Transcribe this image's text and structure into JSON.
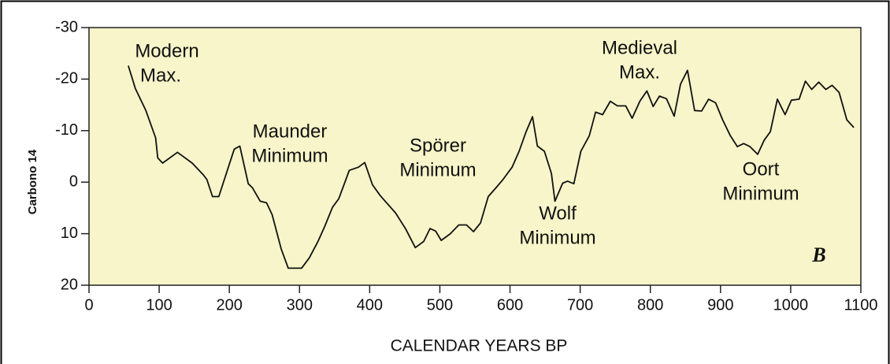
{
  "chart_data": {
    "type": "line",
    "ylabel": "Carbono 14",
    "xlabel": "CALENDAR YEARS BP",
    "panel_label": "B",
    "annotations": [
      [
        "Modern",
        "Max."
      ],
      [
        "Maunder",
        "Minimum"
      ],
      [
        "Spörer",
        "Minimum"
      ],
      [
        "Wolf",
        "Minimum"
      ],
      [
        "Medieval",
        "Max."
      ],
      [
        "Oort",
        "Minimum"
      ]
    ],
    "color": "#111111",
    "background": "#f7f5c9",
    "inverted_y": true,
    "xlim": [
      0,
      1100
    ],
    "xticks": [
      0,
      100,
      200,
      300,
      400,
      500,
      600,
      700,
      800,
      900,
      1000,
      1100
    ],
    "ylim": [
      -30,
      20
    ],
    "yticks": [
      -30,
      -20,
      -10,
      0,
      10,
      20
    ],
    "x": [
      56,
      66,
      81,
      95,
      98,
      105,
      126,
      147,
      163,
      168,
      176,
      185,
      207,
      215,
      227,
      233,
      244,
      253,
      261,
      274,
      284,
      303,
      314,
      326,
      336,
      347,
      356,
      371,
      384,
      393,
      404,
      415,
      437,
      451,
      465,
      477,
      486,
      494,
      502,
      515,
      527,
      538,
      548,
      558,
      569,
      580,
      590,
      603,
      613,
      623,
      632,
      639,
      649,
      659,
      664,
      675,
      682,
      691,
      701,
      713,
      722,
      732,
      743,
      753,
      765,
      774,
      785,
      795,
      804,
      813,
      823,
      834,
      843,
      853,
      863,
      873,
      883,
      893,
      903,
      914,
      924,
      933,
      942,
      953,
      962,
      971,
      981,
      992,
      1001,
      1012,
      1021,
      1030,
      1040,
      1050,
      1059,
      1069,
      1080,
      1090
    ],
    "values": [
      -22.6,
      -18.2,
      -13.9,
      -8.6,
      -4.7,
      -3.7,
      -5.8,
      -3.7,
      -1.4,
      -0.5,
      2.8,
      2.8,
      -6.4,
      -7.0,
      0.3,
      1.1,
      3.7,
      4.0,
      6.3,
      13,
      16.7,
      16.7,
      14.7,
      11.6,
      8.6,
      4.9,
      3.2,
      -2.3,
      -2.9,
      -3.8,
      0.5,
      2.6,
      6.0,
      9.0,
      12.7,
      11.5,
      9.0,
      9.5,
      11.3,
      10.0,
      8.3,
      8.3,
      9.6,
      7.9,
      2.8,
      1.1,
      -0.5,
      -2.9,
      -6.0,
      -9.8,
      -12.7,
      -7.0,
      -6.0,
      -1.7,
      3.7,
      0.2,
      -0.2,
      0.3,
      -6.0,
      -9.0,
      -13.6,
      -13.1,
      -15.7,
      -14.8,
      -14.8,
      -12.4,
      -15.7,
      -17.7,
      -14.7,
      -16.7,
      -16.2,
      -12.8,
      -19.0,
      -21.7,
      -13.9,
      -13.8,
      -16.1,
      -15.4,
      -12.1,
      -9.0,
      -6.9,
      -7.5,
      -6.9,
      -5.4,
      -8.1,
      -9.8,
      -16.1,
      -13.1,
      -15.9,
      -16.1,
      -19.6,
      -18.0,
      -19.4,
      -18.0,
      -18.8,
      -17.4,
      -12.1,
      -10.6
    ]
  }
}
